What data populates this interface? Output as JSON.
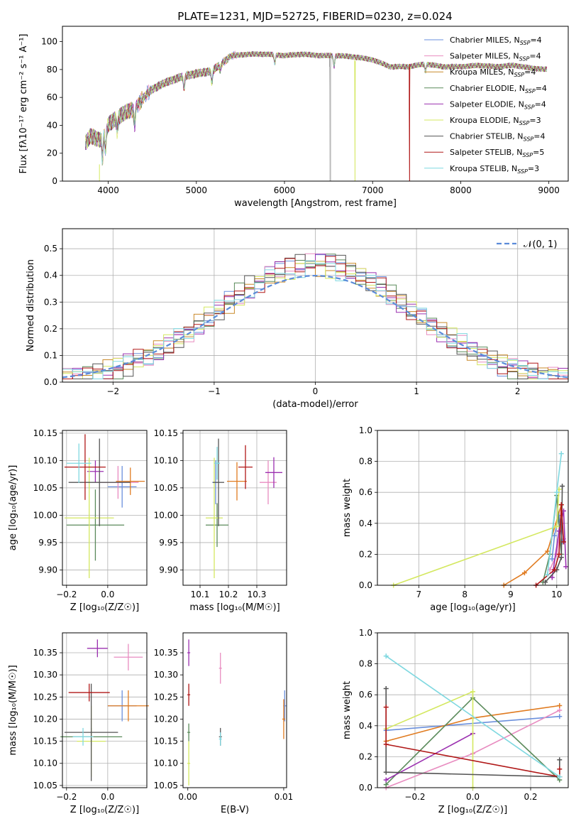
{
  "colors": {
    "chabrier_miles": "#6a8fdc",
    "salpeter_miles": "#e88cc0",
    "kroupa_miles": "#c98a2a",
    "chabrier_elodie": "#5a8a5a",
    "salpeter_elodie": "#9b30b0",
    "kroupa_elodie": "#d4e860",
    "chabrier_stelib": "#555555",
    "salpeter_stelib": "#b01818",
    "kroupa_stelib": "#7fd8e0",
    "orange": "#e07b20"
  },
  "chart_data": [
    {
      "id": "spectrum",
      "type": "line",
      "title": "PLATE=1231, MJD=52725, FIBERID=0230, z=0.024",
      "xlabel": "wavelength [Angstrom, rest frame]",
      "ylabel": "Flux [fλ10⁻¹⁷ erg cm⁻² s⁻¹ A⁻¹]",
      "xlim": [
        3480,
        9220
      ],
      "ylim": [
        0,
        111
      ],
      "xticks": [
        4000,
        5000,
        6000,
        7000,
        8000,
        9000
      ],
      "yticks": [
        0,
        20,
        40,
        60,
        80,
        100
      ],
      "grid": false,
      "legend_position": "upper right",
      "legend": [
        "Chabrier MILES, N_SSP=4",
        "Salpeter MILES, N_SSP=4",
        "Kroupa MILES, N_SSP=4",
        "Chabrier ELODIE, N_SSP=4",
        "Salpeter ELODIE, N_SSP=4",
        "Kroupa ELODIE, N_SSP=3",
        "Chabrier STELIB, N_SSP=4",
        "Salpeter STELIB, N_SSP=5",
        "Kroupa STELIB, N_SSP=3"
      ],
      "continuum_anchors": {
        "x": [
          3740,
          3800,
          3900,
          4000,
          4100,
          4200,
          4300,
          4400,
          4500,
          4700,
          4900,
          5100,
          5200,
          5400,
          5600,
          5800,
          6000,
          6200,
          6400,
          6600,
          6800,
          7000,
          7200,
          7400,
          7600,
          7800,
          8000,
          8200,
          8400,
          8600,
          8800,
          8980
        ],
        "y": [
          27,
          32,
          30,
          40,
          46,
          49,
          52,
          60,
          66,
          72,
          76,
          78,
          80,
          90,
          91,
          91,
          90,
          91,
          90,
          90,
          89,
          87,
          82,
          82,
          84,
          82,
          82,
          83,
          82,
          83,
          81,
          80
        ]
      },
      "dropouts": [
        {
          "x": 3900,
          "name": "Kroupa ELODIE"
        },
        {
          "x": 6520,
          "name": "Chabrier STELIB"
        },
        {
          "x": 6800,
          "name": "Kroupa ELODIE"
        },
        {
          "x": 7420,
          "name": "Salpeter STELIB"
        }
      ]
    },
    {
      "id": "residuals",
      "type": "histogram",
      "xlabel": "(data-model)/error",
      "ylabel": "Normed distribution",
      "xlim": [
        -2.5,
        2.5
      ],
      "ylim": [
        0,
        0.575
      ],
      "xticks": [
        -2,
        -1,
        0,
        1,
        2
      ],
      "yticks": [
        0.0,
        0.1,
        0.2,
        0.3,
        0.4,
        0.5
      ],
      "grid": true,
      "legend_position": "upper right",
      "legend": [
        "𝒩(0, 1)"
      ],
      "bin_width": 0.1
    },
    {
      "id": "age-vs-Z",
      "type": "scatter",
      "xlabel": "Z [log₁₀(Z/Z☉)]",
      "ylabel": "age  [log₁₀(age/yr)]",
      "xlim": [
        -0.22,
        0.19
      ],
      "ylim": [
        9.872,
        10.155
      ],
      "xticks": [
        -0.2,
        0.0
      ],
      "yticks": [
        9.9,
        9.95,
        10.0,
        10.05,
        10.1,
        10.15
      ],
      "grid": true,
      "points": [
        {
          "series": "Chabrier MILES",
          "x": 0.07,
          "y": 10.052,
          "xerr": 0.07,
          "yerr": 0.038
        },
        {
          "series": "Salpeter MILES",
          "x": 0.05,
          "y": 10.06,
          "xerr": 0.1,
          "yerr": 0.03
        },
        {
          "series": "Kroupa MILES",
          "x": 0.11,
          "y": 10.062,
          "xerr": 0.07,
          "yerr": 0.025
        },
        {
          "series": "Chabrier ELODIE",
          "x": -0.06,
          "y": 9.982,
          "xerr": 0.14,
          "yerr": 0.065
        },
        {
          "series": "Salpeter ELODIE",
          "x": -0.06,
          "y": 10.08,
          "xerr": 0.04,
          "yerr": 0.02
        },
        {
          "series": "Kroupa ELODIE",
          "x": -0.09,
          "y": 9.995,
          "xerr": 0.12,
          "yerr": 0.11
        },
        {
          "series": "Chabrier STELIB",
          "x": -0.04,
          "y": 10.06,
          "xerr": 0.15,
          "yerr": 0.08
        },
        {
          "series": "Salpeter STELIB",
          "x": -0.11,
          "y": 10.088,
          "xerr": 0.1,
          "yerr": 0.06
        },
        {
          "series": "Kroupa STELIB",
          "x": -0.14,
          "y": 10.095,
          "xerr": 0.06,
          "yerr": 0.036
        }
      ]
    },
    {
      "id": "age-vs-mass",
      "type": "scatter",
      "xlabel": "mass [log₁₀(M/M☉)]",
      "ylabel": "",
      "xlim": [
        10.04,
        10.405
      ],
      "ylim": [
        9.872,
        10.155
      ],
      "xticks": [
        10.1,
        10.2,
        10.3
      ],
      "yticks": [
        9.9,
        9.95,
        10.0,
        10.05,
        10.1,
        10.15
      ],
      "grid": true,
      "points": [
        {
          "series": "Chabrier MILES",
          "x": 10.155,
          "y": 10.06,
          "xerr": 0.012,
          "yerr": 0.04
        },
        {
          "series": "Salpeter MILES",
          "x": 10.34,
          "y": 10.06,
          "xerr": 0.03,
          "yerr": 0.04
        },
        {
          "series": "Kroupa MILES",
          "x": 10.23,
          "y": 10.062,
          "xerr": 0.035,
          "yerr": 0.035
        },
        {
          "series": "Chabrier ELODIE",
          "x": 10.16,
          "y": 9.982,
          "xerr": 0.04,
          "yerr": 0.04
        },
        {
          "series": "Salpeter ELODIE",
          "x": 10.36,
          "y": 10.078,
          "xerr": 0.03,
          "yerr": 0.028
        },
        {
          "series": "Kroupa ELODIE",
          "x": 10.15,
          "y": 9.995,
          "xerr": 0.03,
          "yerr": 0.11
        },
        {
          "series": "Chabrier STELIB",
          "x": 10.165,
          "y": 10.06,
          "xerr": 0.02,
          "yerr": 0.08
        },
        {
          "series": "Salpeter STELIB",
          "x": 10.26,
          "y": 10.088,
          "xerr": 0.025,
          "yerr": 0.04
        },
        {
          "series": "Kroupa STELIB",
          "x": 10.16,
          "y": 10.095,
          "xerr": 0.01,
          "yerr": 0.03
        }
      ]
    },
    {
      "id": "weight-vs-age",
      "type": "line",
      "xlabel": "age  [log₁₀(age/yr)]",
      "ylabel": "mass weight",
      "xlim": [
        6.1,
        10.25
      ],
      "ylim": [
        0,
        1
      ],
      "xticks": [
        7,
        8,
        9,
        10
      ],
      "yticks": [
        0.0,
        0.2,
        0.4,
        0.6,
        0.8,
        1.0
      ],
      "grid": true,
      "series": [
        {
          "name": "Chabrier MILES",
          "x": [
            9.9,
            9.95,
            10.05,
            10.12
          ],
          "y": [
            0.17,
            0.32,
            0.45,
            0.28
          ]
        },
        {
          "name": "Salpeter MILES",
          "x": [
            9.85,
            10.0,
            10.1,
            10.15
          ],
          "y": [
            0.1,
            0.2,
            0.4,
            0.3
          ]
        },
        {
          "name": "Kroupa MILES",
          "x": [
            8.85,
            9.3,
            9.8,
            10.1
          ],
          "y": [
            0.0,
            0.08,
            0.22,
            0.52
          ]
        },
        {
          "name": "Chabrier ELODIE",
          "x": [
            9.7,
            9.85,
            10.0,
            10.1
          ],
          "y": [
            0.02,
            0.2,
            0.58,
            0.2
          ]
        },
        {
          "name": "Salpeter ELODIE",
          "x": [
            9.9,
            10.05,
            10.15,
            10.2
          ],
          "y": [
            0.05,
            0.35,
            0.48,
            0.12
          ]
        },
        {
          "name": "Kroupa ELODIE",
          "x": [
            6.45,
            10.0,
            10.05
          ],
          "y": [
            0.0,
            0.38,
            0.62
          ]
        },
        {
          "name": "Chabrier STELIB",
          "x": [
            9.75,
            10.0,
            10.1,
            10.12
          ],
          "y": [
            0.02,
            0.1,
            0.18,
            0.64
          ]
        },
        {
          "name": "Salpeter STELIB",
          "x": [
            9.55,
            9.95,
            10.05,
            10.1,
            10.15
          ],
          "y": [
            0.0,
            0.1,
            0.2,
            0.52,
            0.28
          ]
        },
        {
          "name": "Kroupa STELIB",
          "x": [
            9.8,
            10.0,
            10.1
          ],
          "y": [
            0.07,
            0.6,
            0.85
          ]
        }
      ]
    },
    {
      "id": "mass-vs-Z",
      "type": "scatter",
      "xlabel": "Z [log₁₀(Z/Z☉)]",
      "ylabel": "mass [log₁₀(M/M☉)]",
      "xlim": [
        -0.22,
        0.19
      ],
      "ylim": [
        10.045,
        10.395
      ],
      "xticks": [
        -0.2,
        0.0
      ],
      "yticks": [
        10.05,
        10.1,
        10.15,
        10.2,
        10.25,
        10.3,
        10.35
      ],
      "grid": true,
      "points": [
        {
          "series": "Chabrier MILES",
          "x": 0.07,
          "y": 10.23,
          "xerr": 0.07,
          "yerr": 0.035
        },
        {
          "series": "Salpeter MILES",
          "x": 0.1,
          "y": 10.34,
          "xerr": 0.07,
          "yerr": 0.03
        },
        {
          "series": "Kroupa MILES",
          "x": 0.1,
          "y": 10.23,
          "xerr": 0.1,
          "yerr": 0.035
        },
        {
          "series": "Chabrier ELODIE",
          "x": -0.08,
          "y": 10.16,
          "xerr": 0.15,
          "yerr": 0.02
        },
        {
          "series": "Salpeter ELODIE",
          "x": -0.05,
          "y": 10.36,
          "xerr": 0.05,
          "yerr": 0.02
        },
        {
          "series": "Kroupa ELODIE",
          "x": -0.08,
          "y": 10.15,
          "xerr": 0.07,
          "yerr": 0.08
        },
        {
          "series": "Chabrier STELIB",
          "x": -0.08,
          "y": 10.17,
          "xerr": 0.13,
          "yerr": 0.11
        },
        {
          "series": "Salpeter STELIB",
          "x": -0.09,
          "y": 10.26,
          "xerr": 0.1,
          "yerr": 0.02
        },
        {
          "series": "Kroupa STELIB",
          "x": -0.12,
          "y": 10.16,
          "xerr": 0.05,
          "yerr": 0.02
        }
      ]
    },
    {
      "id": "mass-vs-EBV",
      "type": "scatter",
      "xlabel": "E(B-V)",
      "ylabel": "",
      "xlim": [
        -0.0005,
        0.0103
      ],
      "ylim": [
        10.045,
        10.395
      ],
      "xticks": [
        0.0,
        0.01
      ],
      "yticks": [
        10.05,
        10.1,
        10.15,
        10.2,
        10.25,
        10.3,
        10.35
      ],
      "grid": false,
      "points": [
        {
          "series": "Chabrier MILES",
          "x": 0.0101,
          "y": 10.23,
          "yerr": 0.035
        },
        {
          "series": "Salpeter MILES",
          "x": 0.0034,
          "y": 10.315,
          "yerr": 0.035
        },
        {
          "series": "Kroupa MILES",
          "x": 0.01,
          "y": 10.2,
          "yerr": 0.045
        },
        {
          "series": "Chabrier ELODIE",
          "x": 0.0001,
          "y": 10.17,
          "yerr": 0.02
        },
        {
          "series": "Salpeter ELODIE",
          "x": 0.0001,
          "y": 10.35,
          "yerr": 0.03
        },
        {
          "series": "Kroupa ELODIE",
          "x": 0.0001,
          "y": 10.1,
          "yerr": 0.05
        },
        {
          "series": "Chabrier STELIB",
          "x": 0.0034,
          "y": 10.16,
          "yerr": 0.02
        },
        {
          "series": "Salpeter STELIB",
          "x": 0.0001,
          "y": 10.255,
          "yerr": 0.025
        },
        {
          "series": "Kroupa STELIB",
          "x": 0.0034,
          "y": 10.155,
          "yerr": 0.015
        }
      ]
    },
    {
      "id": "weight-vs-Z",
      "type": "line",
      "xlabel": "Z [log₁₀(Z/Z☉)]",
      "ylabel": "mass weight",
      "xlim": [
        -0.33,
        0.33
      ],
      "ylim": [
        0,
        1
      ],
      "xticks": [
        -0.2,
        0.0,
        0.2
      ],
      "yticks": [
        0.0,
        0.2,
        0.4,
        0.6,
        0.8,
        1.0
      ],
      "grid": true,
      "series": [
        {
          "name": "Chabrier MILES",
          "x": [
            -0.3,
            0.3
          ],
          "y": [
            0.37,
            0.46
          ]
        },
        {
          "name": "Salpeter MILES",
          "x": [
            -0.3,
            0.0,
            0.3
          ],
          "y": [
            0.0,
            0.22,
            0.5
          ]
        },
        {
          "name": "Kroupa MILES",
          "x": [
            -0.3,
            0.0,
            0.3
          ],
          "y": [
            0.3,
            0.45,
            0.53
          ]
        },
        {
          "name": "Chabrier ELODIE",
          "x": [
            -0.3,
            0.0,
            0.3
          ],
          "y": [
            0.02,
            0.58,
            0.05
          ]
        },
        {
          "name": "Salpeter ELODIE",
          "x": [
            -0.3,
            0.0
          ],
          "y": [
            0.05,
            0.35
          ]
        },
        {
          "name": "Kroupa ELODIE",
          "x": [
            -0.3,
            0.0,
            0.0
          ],
          "y": [
            0.38,
            0.62,
            0.0
          ]
        },
        {
          "name": "Chabrier STELIB",
          "x": [
            -0.3,
            -0.3,
            0.3,
            0.3
          ],
          "y": [
            0.64,
            0.1,
            0.07,
            0.18
          ]
        },
        {
          "name": "Salpeter STELIB",
          "x": [
            -0.3,
            -0.3,
            0.3,
            0.3
          ],
          "y": [
            0.52,
            0.28,
            0.07,
            0.12
          ]
        },
        {
          "name": "Kroupa STELIB",
          "x": [
            -0.3,
            0.3
          ],
          "y": [
            0.85,
            0.07
          ]
        }
      ]
    }
  ]
}
